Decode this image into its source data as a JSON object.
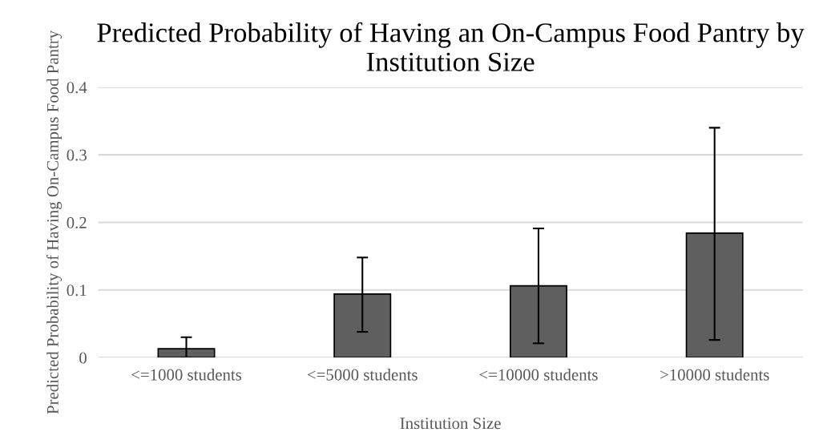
{
  "chart_data": {
    "type": "bar",
    "title": "Predicted Probability of Having an On-Campus Food Pantry by Institution Size",
    "xlabel": "Institution Size",
    "ylabel": "Predicted Probability of Having On-Campus Food Pantry",
    "categories": [
      "<=1000 students",
      "<=5000 students",
      "<=10000 students",
      ">10000 students"
    ],
    "values": [
      0.013,
      0.094,
      0.106,
      0.184
    ],
    "color": "#5f5f5f",
    "errors": [
      [
        0.0,
        0.03
      ],
      [
        0.038,
        0.148
      ],
      [
        0.021,
        0.191
      ],
      [
        0.026,
        0.34
      ]
    ],
    "ylim": [
      0,
      0.4
    ],
    "yticks": [
      {
        "value": 0,
        "label": "0"
      },
      0.1,
      0.2,
      0.3,
      0.4
    ],
    "grid": "y"
  }
}
